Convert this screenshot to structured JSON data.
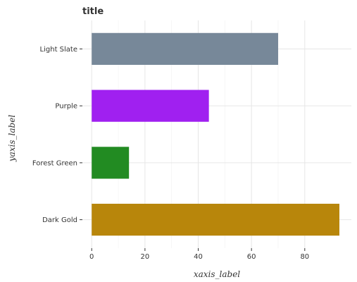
{
  "chart_data": {
    "type": "bar",
    "orientation": "horizontal",
    "title": "title",
    "xlabel": "xaxis_label",
    "ylabel": "yaxis_label",
    "categories": [
      "Dark Gold",
      "Forest Green",
      "Purple",
      "Light Slate"
    ],
    "values": [
      93,
      14,
      44,
      70
    ],
    "colors": [
      "#b8860b",
      "#228b22",
      "#a020f0",
      "#778899"
    ],
    "xlim": [
      -3.5,
      97.5
    ],
    "xticks": [
      0,
      20,
      40,
      60,
      80
    ],
    "grid": true,
    "legend": "none"
  }
}
